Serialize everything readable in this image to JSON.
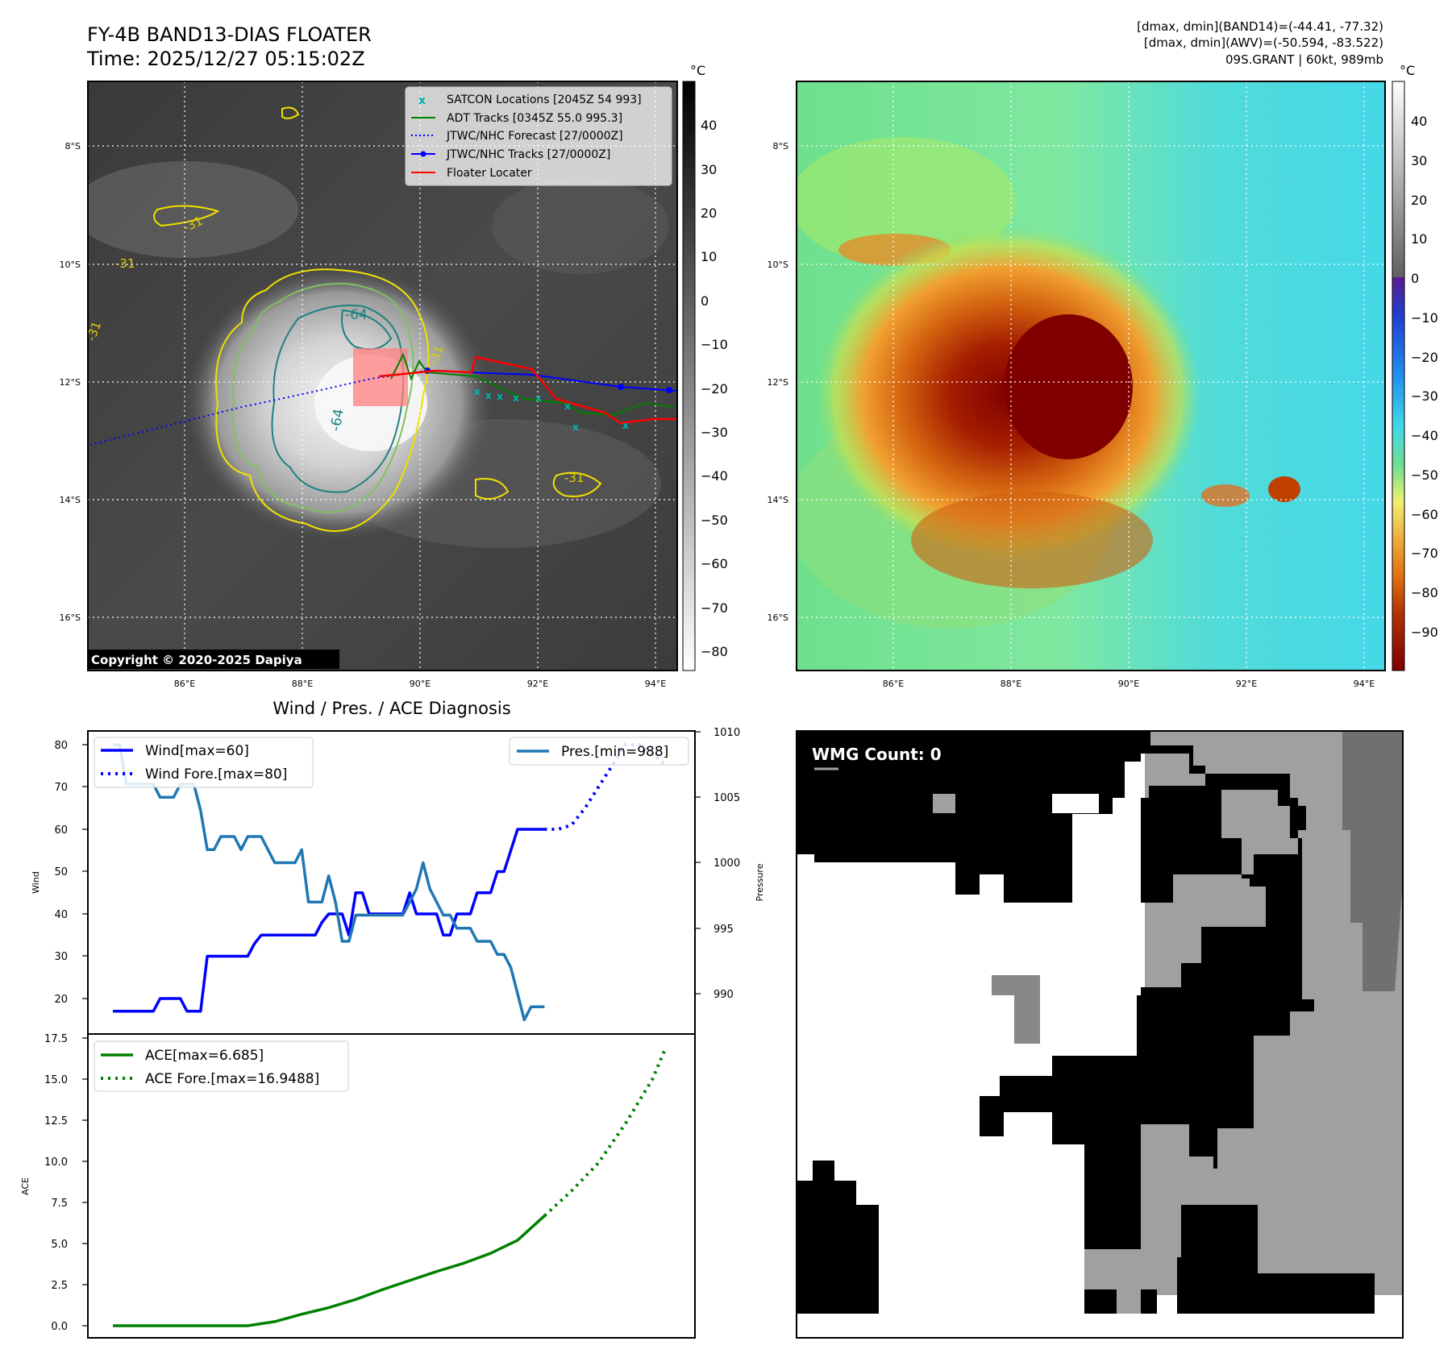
{
  "header": {
    "title_line1": "FY-4B BAND13-DIAS FLOATER",
    "title_line2": "Time: 2025/12/27 05:15:02Z",
    "info_line1": "[dmax, dmin](BAND14)=(-44.41, -77.32)",
    "info_line2": "[dmax, dmin](AWV)=(-50.594, -83.522)",
    "info_line3": "09S.GRANT | 60kt, 989mb"
  },
  "map_common": {
    "lat_labels": [
      "8°S",
      "10°S",
      "12°S",
      "14°S",
      "16°S"
    ],
    "lon_labels": [
      "86°E",
      "88°E",
      "90°E",
      "92°E",
      "94°E"
    ]
  },
  "ir_panel": {
    "copyright": "Copyright © 2020-2025 Dapiya",
    "colorbar_unit": "°C",
    "colorbar_ticks": [
      "40",
      "30",
      "20",
      "10",
      "0",
      "−10",
      "−20",
      "−30",
      "−40",
      "−50",
      "−60",
      "−70",
      "−80"
    ],
    "contour_labels": [
      "-64",
      "-64",
      "-31",
      "-31",
      "-31",
      "-31",
      "-31"
    ],
    "legend": [
      {
        "label": "SATCON Locations [2045Z 54 993]",
        "color": "#00b3b3",
        "style": "x"
      },
      {
        "label": "ADT Tracks [0345Z 55.0 995.3]",
        "color": "#008000",
        "style": "line"
      },
      {
        "label": "JTWC/NHC Forecast [27/0000Z]",
        "color": "#0000ff",
        "style": "dotted"
      },
      {
        "label": "JTWC/NHC Tracks [27/0000Z]",
        "color": "#0000ff",
        "style": "line-marker"
      },
      {
        "label": "Floater Locater",
        "color": "#ff0000",
        "style": "line"
      }
    ]
  },
  "wv_panel": {
    "colorbar_unit": "°C",
    "colorbar_ticks": [
      "40",
      "30",
      "20",
      "10",
      "0",
      "−10",
      "−20",
      "−30",
      "−40",
      "−50",
      "−60",
      "−70",
      "−80",
      "−90"
    ]
  },
  "diagnosis": {
    "title": "Wind / Pres. / ACE Diagnosis",
    "wind_ylabel": "Wind",
    "pressure_ylabel": "Pressure",
    "ace_ylabel": "ACE",
    "wind_legend": [
      "Wind[max=60]",
      "Wind Fore.[max=80]"
    ],
    "pres_legend": "Pres.[min=988]",
    "ace_legend": [
      "ACE[max=6.685]",
      "ACE Fore.[max=16.9488]"
    ],
    "wind_ticks": [
      "80",
      "70",
      "60",
      "50",
      "40",
      "30",
      "20"
    ],
    "pres_ticks": [
      "1010",
      "1005",
      "1000",
      "995",
      "990"
    ],
    "ace_ticks": [
      "17.5",
      "15.0",
      "12.5",
      "10.0",
      "7.5",
      "5.0",
      "2.5",
      "0.0"
    ]
  },
  "wmg_panel": {
    "count_label": "WMG Count: 0"
  },
  "chart_data": [
    {
      "type": "line",
      "name": "wind",
      "ylim": [
        15,
        82
      ],
      "series": [
        {
          "name": "Wind[max=60]",
          "x": [
            0,
            1,
            2,
            3,
            4,
            5,
            6,
            7,
            8,
            9,
            10,
            11,
            12,
            13,
            14,
            15,
            16,
            17,
            18,
            19,
            20,
            21,
            22,
            23,
            24,
            25,
            26,
            27,
            28,
            29,
            30,
            31,
            32,
            33,
            34,
            35,
            36,
            37,
            38,
            39,
            40,
            41,
            42,
            43,
            44,
            45,
            46,
            47,
            48,
            49,
            50,
            51,
            52,
            53,
            54,
            55,
            56,
            57,
            58,
            59,
            60,
            61,
            62,
            63,
            64
          ],
          "values": [
            17,
            17,
            17,
            17,
            17,
            17,
            17,
            20,
            20,
            20,
            20,
            17,
            17,
            17,
            30,
            30,
            30,
            30,
            30,
            30,
            30,
            33,
            35,
            35,
            35,
            35,
            35,
            35,
            35,
            35,
            35,
            38,
            40,
            40,
            40,
            35,
            45,
            45,
            40,
            40,
            40,
            40,
            40,
            40,
            45,
            40,
            40,
            40,
            40,
            35,
            35,
            40,
            40,
            40,
            45,
            45,
            45,
            50,
            50,
            55,
            60,
            60,
            60,
            60,
            60
          ]
        },
        {
          "name": "Wind Fore.[max=80]",
          "x": [
            64,
            66,
            68,
            70,
            72,
            74,
            76,
            78,
            80,
            82
          ],
          "values": [
            60,
            60,
            61,
            65,
            70,
            75,
            80,
            80,
            78,
            75
          ]
        }
      ]
    },
    {
      "type": "line",
      "name": "pressure",
      "ylim": [
        987.5,
        1010
      ],
      "series": [
        {
          "name": "Pres.[min=988]",
          "x": [
            0,
            1,
            2,
            3,
            4,
            5,
            6,
            7,
            8,
            9,
            10,
            11,
            12,
            13,
            14,
            15,
            16,
            17,
            18,
            19,
            20,
            21,
            22,
            23,
            24,
            25,
            26,
            27,
            28,
            29,
            30,
            31,
            32,
            33,
            34,
            35,
            36,
            37,
            38,
            39,
            40,
            41,
            42,
            43,
            44,
            45,
            46,
            47,
            48,
            49,
            50,
            51,
            52,
            53,
            54,
            55,
            56,
            57,
            58,
            59,
            60,
            61,
            62,
            63,
            64
          ],
          "values": [
            1009,
            1009,
            1006,
            1006,
            1006,
            1006,
            1006,
            1005,
            1005,
            1005,
            1006,
            1006,
            1006,
            1004,
            1001,
            1001,
            1002,
            1002,
            1002,
            1001,
            1002,
            1002,
            1002,
            1001,
            1000,
            1000,
            1000,
            1000,
            1001,
            997,
            997,
            997,
            999,
            997,
            994,
            994,
            996,
            996,
            996,
            996,
            996,
            996,
            996,
            996,
            997,
            998,
            1000,
            998,
            997,
            996,
            996,
            995,
            995,
            995,
            994,
            994,
            994,
            993,
            993,
            992,
            990,
            988,
            989,
            989,
            989
          ]
        }
      ]
    },
    {
      "type": "line",
      "name": "ace",
      "ylim": [
        -0.8,
        17.5
      ],
      "series": [
        {
          "name": "ACE[max=6.685]",
          "x": [
            0,
            4,
            8,
            12,
            16,
            20,
            24,
            28,
            32,
            36,
            40,
            44,
            48,
            52,
            56,
            60,
            64
          ],
          "values": [
            0,
            0,
            0,
            0,
            0,
            0,
            0.25,
            0.7,
            1.1,
            1.6,
            2.2,
            2.75,
            3.3,
            3.8,
            4.4,
            5.2,
            6.685
          ]
        },
        {
          "name": "ACE Fore.[max=16.9488]",
          "x": [
            64,
            68,
            72,
            76,
            80,
            82
          ],
          "values": [
            6.685,
            8.2,
            9.9,
            12.3,
            15.0,
            16.9488
          ]
        }
      ]
    }
  ]
}
